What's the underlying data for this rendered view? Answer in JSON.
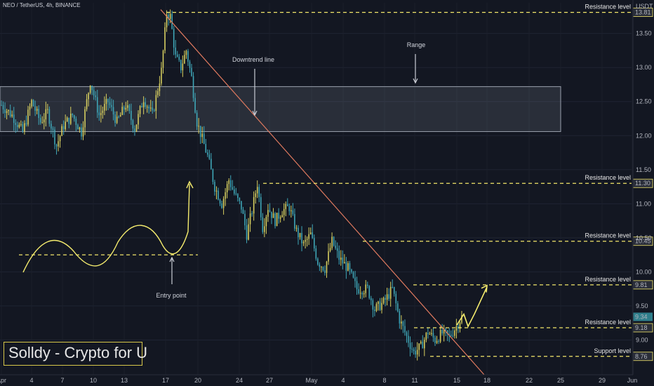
{
  "header": {
    "symbol_line": "NEO / TetherUS, 4h, BINANCE",
    "currency": "USDT"
  },
  "brand": {
    "text": "Solldy - Crypto for U"
  },
  "colors": {
    "bg": "#131722",
    "up": "#d8d060",
    "down": "#3fa7b8",
    "level": "#f2e66a",
    "trend": "#e07a5f",
    "arrow": "#f5ec6e"
  },
  "chart_data": {
    "type": "candlestick",
    "title": "",
    "ylim": [
      8.5,
      13.95
    ],
    "y_ticks": [
      9.0,
      9.5,
      10.0,
      10.5,
      11.0,
      11.5,
      12.0,
      12.5,
      13.0,
      13.5
    ],
    "y_tick_labels": [
      "9.00",
      "9.50",
      "10.00",
      "10.50",
      "11.00",
      "11.50",
      "12.00",
      "12.50",
      "13.00",
      "13.50"
    ],
    "x_tick_labels": [
      "Apr",
      "4",
      "7",
      "10",
      "13",
      "17",
      "20",
      "24",
      "27",
      "May",
      "4",
      "8",
      "11",
      "15",
      "18",
      "22",
      "25",
      "29",
      "Jun"
    ],
    "price_path": [
      [
        0,
        12.45
      ],
      [
        6,
        12.3
      ],
      [
        12,
        12.05
      ],
      [
        17,
        12.5
      ],
      [
        22,
        12.2
      ],
      [
        26,
        12.35
      ],
      [
        31,
        11.85
      ],
      [
        35,
        12.15
      ],
      [
        40,
        12.3
      ],
      [
        45,
        12.05
      ],
      [
        50,
        12.8
      ],
      [
        55,
        12.3
      ],
      [
        60,
        12.5
      ],
      [
        65,
        12.2
      ],
      [
        70,
        12.45
      ],
      [
        75,
        12.1
      ],
      [
        80,
        12.55
      ],
      [
        85,
        12.3
      ],
      [
        90,
        12.95
      ],
      [
        93,
        13.8
      ],
      [
        95,
        13.75
      ],
      [
        98,
        13.15
      ],
      [
        101,
        13.0
      ],
      [
        104,
        13.25
      ],
      [
        107,
        12.85
      ],
      [
        110,
        12.2
      ],
      [
        113,
        11.95
      ],
      [
        116,
        11.7
      ],
      [
        120,
        11.25
      ],
      [
        124,
        11.0
      ],
      [
        128,
        11.35
      ],
      [
        131,
        11.15
      ],
      [
        135,
        10.95
      ],
      [
        138,
        10.55
      ],
      [
        141,
        10.9
      ],
      [
        144,
        11.3
      ],
      [
        147,
        10.65
      ],
      [
        150,
        10.95
      ],
      [
        154,
        10.75
      ],
      [
        158,
        10.9
      ],
      [
        162,
        10.95
      ],
      [
        166,
        10.6
      ],
      [
        170,
        10.4
      ],
      [
        174,
        10.55
      ],
      [
        178,
        10.15
      ],
      [
        182,
        10.05
      ],
      [
        186,
        10.45
      ],
      [
        190,
        10.2
      ],
      [
        195,
        10.05
      ],
      [
        200,
        9.75
      ],
      [
        206,
        9.75
      ],
      [
        210,
        9.45
      ],
      [
        215,
        9.55
      ],
      [
        220,
        9.75
      ],
      [
        224,
        9.3
      ],
      [
        228,
        9.05
      ],
      [
        232,
        8.82
      ],
      [
        236,
        8.9
      ],
      [
        240,
        9.12
      ],
      [
        244,
        9.0
      ],
      [
        248,
        9.1
      ],
      [
        252,
        9.05
      ],
      [
        256,
        9.2
      ],
      [
        259,
        9.34
      ]
    ],
    "levels": [
      {
        "label": "Resistance level",
        "value": 13.81,
        "value_label": "13.81"
      },
      {
        "label": "Resistance level",
        "value": 11.3,
        "value_label": "11.30"
      },
      {
        "label": "Resistance level",
        "value": 10.45,
        "value_label": "10.45"
      },
      {
        "label": "Resistance level",
        "value": 9.81,
        "value_label": "9.81"
      },
      {
        "label": "Resistance level",
        "value": 9.18,
        "value_label": "9.18"
      },
      {
        "label": "Support level",
        "value": 8.76,
        "value_label": "8.76"
      }
    ],
    "current_price": {
      "value": 9.34,
      "value_label": "9.34"
    },
    "range_zone": {
      "label": "Range",
      "top": 12.72,
      "bottom": 12.06
    },
    "trendline": {
      "label": "Downtrend line"
    },
    "entry": {
      "label": "Entry point",
      "level": 10.25
    }
  }
}
